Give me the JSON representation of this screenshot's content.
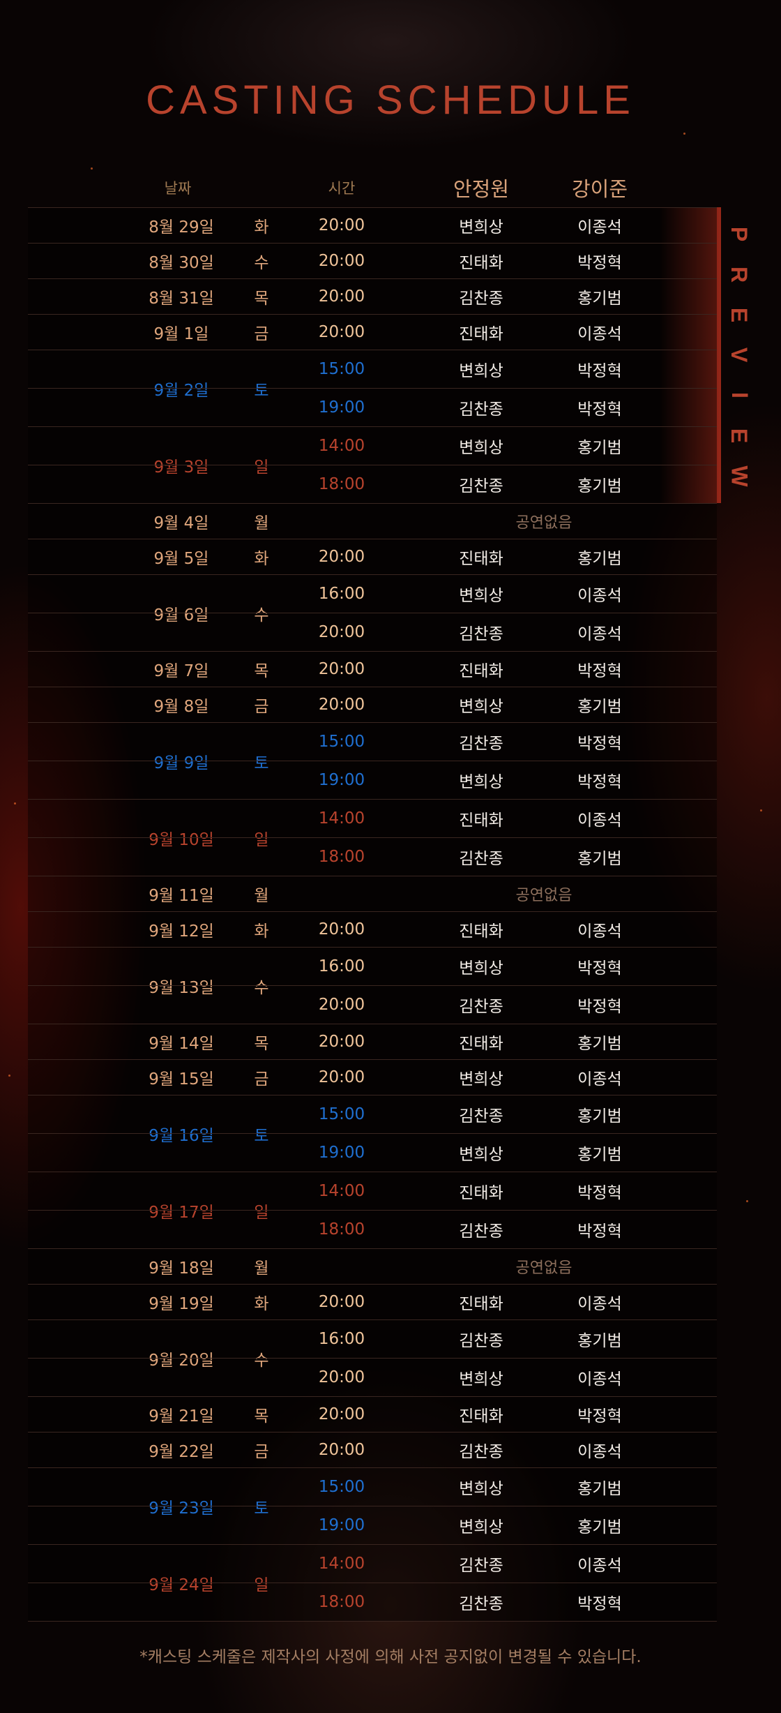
{
  "title": "CASTING SCHEDULE",
  "preview_label": "PREVIEW",
  "headers": {
    "date": "날짜",
    "time": "시간",
    "actor1": "안정원",
    "actor2": "강이준"
  },
  "no_show_label": "공연없음",
  "footnote": "*캐스팅 스케줄은 제작사의 사정에 의해 사전 공지없이 변경될 수 있습니다.",
  "colors": {
    "accent": "#b8432d",
    "weekday": "#e0a67c",
    "saturday": "#1f6fd0",
    "sunday": "#b8432d"
  },
  "schedule": [
    {
      "date": "8월 29일",
      "day": "화",
      "kind": "weekday",
      "shows": [
        {
          "time": "20:00",
          "actor1": "변희상",
          "actor2": "이종석"
        }
      ]
    },
    {
      "date": "8월 30일",
      "day": "수",
      "kind": "weekday",
      "shows": [
        {
          "time": "20:00",
          "actor1": "진태화",
          "actor2": "박정혁"
        }
      ]
    },
    {
      "date": "8월 31일",
      "day": "목",
      "kind": "weekday",
      "shows": [
        {
          "time": "20:00",
          "actor1": "김찬종",
          "actor2": "홍기범"
        }
      ]
    },
    {
      "date": "9월 1일",
      "day": "금",
      "kind": "weekday",
      "shows": [
        {
          "time": "20:00",
          "actor1": "진태화",
          "actor2": "이종석"
        }
      ]
    },
    {
      "date": "9월 2일",
      "day": "토",
      "kind": "saturday",
      "shows": [
        {
          "time": "15:00",
          "actor1": "변희상",
          "actor2": "박정혁"
        },
        {
          "time": "19:00",
          "actor1": "김찬종",
          "actor2": "박정혁"
        }
      ]
    },
    {
      "date": "9월 3일",
      "day": "일",
      "kind": "sunday",
      "shows": [
        {
          "time": "14:00",
          "actor1": "변희상",
          "actor2": "홍기범"
        },
        {
          "time": "18:00",
          "actor1": "김찬종",
          "actor2": "홍기범"
        }
      ]
    },
    {
      "date": "9월 4일",
      "day": "월",
      "kind": "weekday",
      "shows": []
    },
    {
      "date": "9월 5일",
      "day": "화",
      "kind": "weekday",
      "shows": [
        {
          "time": "20:00",
          "actor1": "진태화",
          "actor2": "홍기범"
        }
      ]
    },
    {
      "date": "9월 6일",
      "day": "수",
      "kind": "weekday",
      "shows": [
        {
          "time": "16:00",
          "actor1": "변희상",
          "actor2": "이종석"
        },
        {
          "time": "20:00",
          "actor1": "김찬종",
          "actor2": "이종석"
        }
      ]
    },
    {
      "date": "9월 7일",
      "day": "목",
      "kind": "weekday",
      "shows": [
        {
          "time": "20:00",
          "actor1": "진태화",
          "actor2": "박정혁"
        }
      ]
    },
    {
      "date": "9월 8일",
      "day": "금",
      "kind": "weekday",
      "shows": [
        {
          "time": "20:00",
          "actor1": "변희상",
          "actor2": "홍기범"
        }
      ]
    },
    {
      "date": "9월 9일",
      "day": "토",
      "kind": "saturday",
      "shows": [
        {
          "time": "15:00",
          "actor1": "김찬종",
          "actor2": "박정혁"
        },
        {
          "time": "19:00",
          "actor1": "변희상",
          "actor2": "박정혁"
        }
      ]
    },
    {
      "date": "9월 10일",
      "day": "일",
      "kind": "sunday",
      "shows": [
        {
          "time": "14:00",
          "actor1": "진태화",
          "actor2": "이종석"
        },
        {
          "time": "18:00",
          "actor1": "김찬종",
          "actor2": "홍기범"
        }
      ]
    },
    {
      "date": "9월 11일",
      "day": "월",
      "kind": "weekday",
      "shows": []
    },
    {
      "date": "9월 12일",
      "day": "화",
      "kind": "weekday",
      "shows": [
        {
          "time": "20:00",
          "actor1": "진태화",
          "actor2": "이종석"
        }
      ]
    },
    {
      "date": "9월 13일",
      "day": "수",
      "kind": "weekday",
      "shows": [
        {
          "time": "16:00",
          "actor1": "변희상",
          "actor2": "박정혁"
        },
        {
          "time": "20:00",
          "actor1": "김찬종",
          "actor2": "박정혁"
        }
      ]
    },
    {
      "date": "9월 14일",
      "day": "목",
      "kind": "weekday",
      "shows": [
        {
          "time": "20:00",
          "actor1": "진태화",
          "actor2": "홍기범"
        }
      ]
    },
    {
      "date": "9월 15일",
      "day": "금",
      "kind": "weekday",
      "shows": [
        {
          "time": "20:00",
          "actor1": "변희상",
          "actor2": "이종석"
        }
      ]
    },
    {
      "date": "9월 16일",
      "day": "토",
      "kind": "saturday",
      "shows": [
        {
          "time": "15:00",
          "actor1": "김찬종",
          "actor2": "홍기범"
        },
        {
          "time": "19:00",
          "actor1": "변희상",
          "actor2": "홍기범"
        }
      ]
    },
    {
      "date": "9월 17일",
      "day": "일",
      "kind": "sunday",
      "shows": [
        {
          "time": "14:00",
          "actor1": "진태화",
          "actor2": "박정혁"
        },
        {
          "time": "18:00",
          "actor1": "김찬종",
          "actor2": "박정혁"
        }
      ]
    },
    {
      "date": "9월 18일",
      "day": "월",
      "kind": "weekday",
      "shows": []
    },
    {
      "date": "9월 19일",
      "day": "화",
      "kind": "weekday",
      "shows": [
        {
          "time": "20:00",
          "actor1": "진태화",
          "actor2": "이종석"
        }
      ]
    },
    {
      "date": "9월 20일",
      "day": "수",
      "kind": "weekday",
      "shows": [
        {
          "time": "16:00",
          "actor1": "김찬종",
          "actor2": "홍기범"
        },
        {
          "time": "20:00",
          "actor1": "변희상",
          "actor2": "이종석"
        }
      ]
    },
    {
      "date": "9월 21일",
      "day": "목",
      "kind": "weekday",
      "shows": [
        {
          "time": "20:00",
          "actor1": "진태화",
          "actor2": "박정혁"
        }
      ]
    },
    {
      "date": "9월 22일",
      "day": "금",
      "kind": "weekday",
      "shows": [
        {
          "time": "20:00",
          "actor1": "김찬종",
          "actor2": "이종석"
        }
      ]
    },
    {
      "date": "9월 23일",
      "day": "토",
      "kind": "saturday",
      "shows": [
        {
          "time": "15:00",
          "actor1": "변희상",
          "actor2": "홍기범"
        },
        {
          "time": "19:00",
          "actor1": "변희상",
          "actor2": "홍기범"
        }
      ]
    },
    {
      "date": "9월 24일",
      "day": "일",
      "kind": "sunday",
      "shows": [
        {
          "time": "14:00",
          "actor1": "김찬종",
          "actor2": "이종석"
        },
        {
          "time": "18:00",
          "actor1": "김찬종",
          "actor2": "박정혁"
        }
      ]
    }
  ]
}
